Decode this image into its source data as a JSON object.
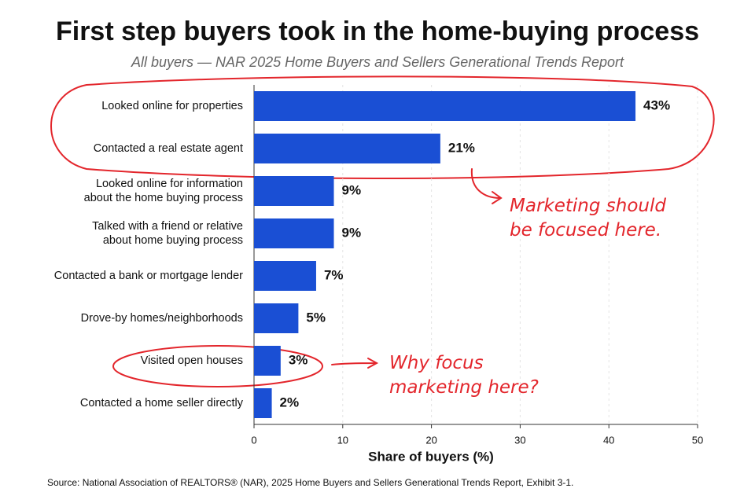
{
  "chart_data": {
    "type": "bar",
    "orientation": "horizontal",
    "title": "First step buyers took in the home-buying process",
    "subtitle": "All buyers — NAR 2025 Home Buyers and Sellers Generational Trends Report",
    "categories": [
      [
        "Looked online for properties"
      ],
      [
        "Contacted a real estate agent"
      ],
      [
        "Looked online for information",
        "about the home buying process"
      ],
      [
        "Talked with a friend or relative",
        "about home buying process"
      ],
      [
        "Contacted a bank or mortgage lender"
      ],
      [
        "Drove-by homes/neighborhoods"
      ],
      [
        "Visited open houses"
      ],
      [
        "Contacted a home seller directly"
      ]
    ],
    "values": [
      43,
      21,
      9,
      9,
      7,
      5,
      3,
      2
    ],
    "value_labels": [
      "43%",
      "21%",
      "9%",
      "9%",
      "7%",
      "5%",
      "3%",
      "2%"
    ],
    "color": "#1a4fd4",
    "xlim": [
      0,
      50
    ],
    "xticks": [
      0,
      10,
      20,
      30,
      40,
      50
    ],
    "grid": true,
    "x_label": "Share of buyers (%)",
    "source": "Source: National Association of REALTORS® (NAR), 2025 Home Buyers and Sellers Generational Trends Report, Exhibit 3-1.",
    "annotations": [
      [
        "Marketing should",
        "be focused here."
      ],
      [
        "Why focus",
        "marketing here?"
      ]
    ]
  }
}
